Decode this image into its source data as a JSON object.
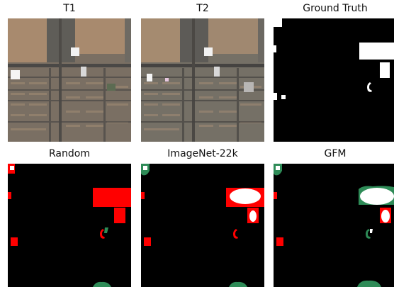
{
  "figure": {
    "panels": [
      {
        "id": "t1",
        "title": "T1"
      },
      {
        "id": "t2",
        "title": "T2"
      },
      {
        "id": "ground-truth",
        "title": "Ground Truth"
      },
      {
        "id": "random",
        "title": "Random"
      },
      {
        "id": "imagenet",
        "title": "ImageNet-22k"
      },
      {
        "id": "gfm",
        "title": "GFM"
      }
    ]
  },
  "colors": {
    "background": "#000000",
    "change": "#ffffff",
    "false_positive": "#ff0000",
    "false_negative": "#2e8b57",
    "field": "#a88a6e",
    "urban": "#6b6860",
    "road": "#4a4846"
  }
}
